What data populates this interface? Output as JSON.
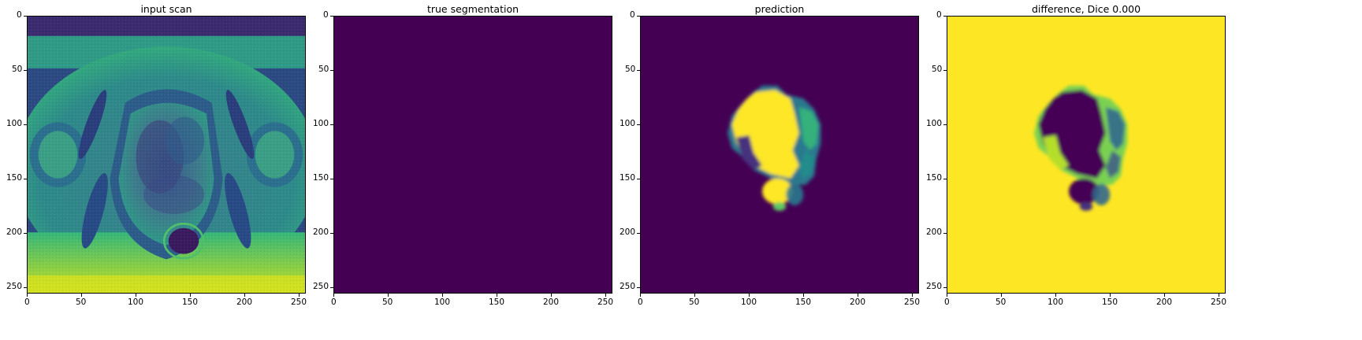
{
  "colors": {
    "background": "#440154",
    "foreground": "#fde725",
    "scan_dark": "#3b1a63",
    "scan_mid": "#2a8c8a",
    "scan_light": "#5dc863"
  },
  "x_ticks": [
    "0",
    "50",
    "100",
    "150",
    "200",
    "250"
  ],
  "y_ticks": [
    "0",
    "50",
    "100",
    "150",
    "200",
    "250"
  ],
  "panels": [
    {
      "title": "input scan",
      "content": "mri-scan"
    },
    {
      "title": "true segmentation",
      "content": "empty-mask"
    },
    {
      "title": "prediction",
      "content": "predicted-mask"
    },
    {
      "title": "difference, Dice 0.000",
      "content": "difference-mask"
    }
  ]
}
